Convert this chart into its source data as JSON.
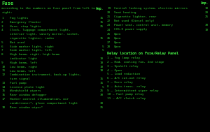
{
  "bg_color": "#000000",
  "text_color": "#33cc33",
  "title_color": "#44ee44",
  "bold_color": "#44ee44",
  "title": "Fuse",
  "subtitle_line1": "according to the numbers on fuse panel from left to",
  "subtitle_line2": "right:",
  "amp_label": "Amp.",
  "fuses_left": [
    {
      "n": "1",
      "desc": "Fog lights",
      "dots": true,
      "amp": "15",
      "lines": 1
    },
    {
      "n": "2",
      "desc": "Emergency flasher",
      "dots": true,
      "amp": "15",
      "lines": 1
    },
    {
      "n": "3",
      "desc": "Horn, stop lights",
      "dots": true,
      "amp": "25",
      "lines": 1
    },
    {
      "n": "4",
      "desc": "Clock, luggage compartment light,",
      "dots": false,
      "amp": "",
      "lines": 3,
      "desc2": "interior light, vanity mirror, socket,",
      "desc3": "cigarette lighter, radio",
      "dots3": true,
      "amp3": "15"
    },
    {
      "n": "5",
      "desc": "Not used",
      "dots": false,
      "amp": "",
      "lines": 1
    },
    {
      "n": "6",
      "desc": "Side marker light, right",
      "dots": true,
      "amp": "5",
      "lines": 1
    },
    {
      "n": "7",
      "desc": "Side marker light, left",
      "dots": true,
      "amp": "5",
      "lines": 1
    },
    {
      "n": "8",
      "desc": "High beam, right, high beam",
      "dots": false,
      "amp": "",
      "lines": 2,
      "desc2": "indicator light",
      "dots2": true,
      "amp2": "10"
    },
    {
      "n": "9",
      "desc": "High beam, left",
      "dots": true,
      "amp": "10",
      "lines": 1
    },
    {
      "n": "10",
      "desc": "Low beam, right",
      "dots": true,
      "amp": "10",
      "lines": 1
    },
    {
      "n": "11",
      "desc": "Low beam, left",
      "dots": true,
      "amp": "10",
      "lines": 1
    },
    {
      "n": "12",
      "desc": "Combination instrument, back-up lights,",
      "dots": false,
      "amp": "",
      "lines": 2,
      "desc2": "turn signal",
      "dots2": true,
      "amp2": "15"
    },
    {
      "n": "13",
      "desc": "Fuel pump",
      "dots": true,
      "amp": "15",
      "lines": 1
    },
    {
      "n": "14",
      "desc": "License plate light",
      "dots": true,
      "amp": "5",
      "lines": 1
    },
    {
      "n": "15",
      "desc": "Windshield wipers",
      "dots": true,
      "amp": "25",
      "lines": 1
    },
    {
      "n": "16",
      "desc": "Rear window defogger",
      "dots": true,
      "amp": "30",
      "lines": 1
    },
    {
      "n": "17",
      "desc": "Heater control illumination, air",
      "dots": false,
      "amp": "",
      "lines": 2,
      "desc2": "conditioner*, glove compartment light",
      "dots2": true,
      "amp2": "30"
    },
    {
      "n": "18",
      "desc": "Rear window wiper*",
      "dots": true,
      "amp": "25",
      "lines": 1
    }
  ],
  "fuses_right": [
    {
      "n": "19",
      "desc": "Central locking system, electric mirrors",
      "amp": "10"
    },
    {
      "n": "20",
      "desc": "Seat heating",
      "amp": "20"
    },
    {
      "n": "21",
      "desc": "Cigarette lighter, rear",
      "amp": "25"
    },
    {
      "n": "22",
      "desc": "Not used (Diesel only)",
      "amp": ""
    },
    {
      "n": "23",
      "desc": "Power seat, control unit, memory",
      "amp": "30"
    },
    {
      "n": "24",
      "desc": "CIS-E power supply",
      "amp": "10"
    },
    {
      "n": "25",
      "desc": "Open",
      "amp": ""
    },
    {
      "n": "26",
      "desc": "Open",
      "amp": ""
    },
    {
      "n": "27",
      "desc": "Open",
      "amp": ""
    },
    {
      "n": "28",
      "desc": "Open",
      "amp": ""
    }
  ],
  "relay_title": "Relay location on Fuse/Relay Panel",
  "relays": [
    "1 — Fog lamp relay",
    "2 — Rad. cooling fan, 2nd stage",
    "3 — Upshift relay",
    "4 — Open",
    "5 — Load reduction",
    "6 — A/C cut-out relay",
    "7 — Horn relay",
    "8 — Auto-trans. relay",
    "9 — Intermittent wiper relay",
    "10 — Fuel pump relay",
    "11 — A/C clutch relay"
  ]
}
